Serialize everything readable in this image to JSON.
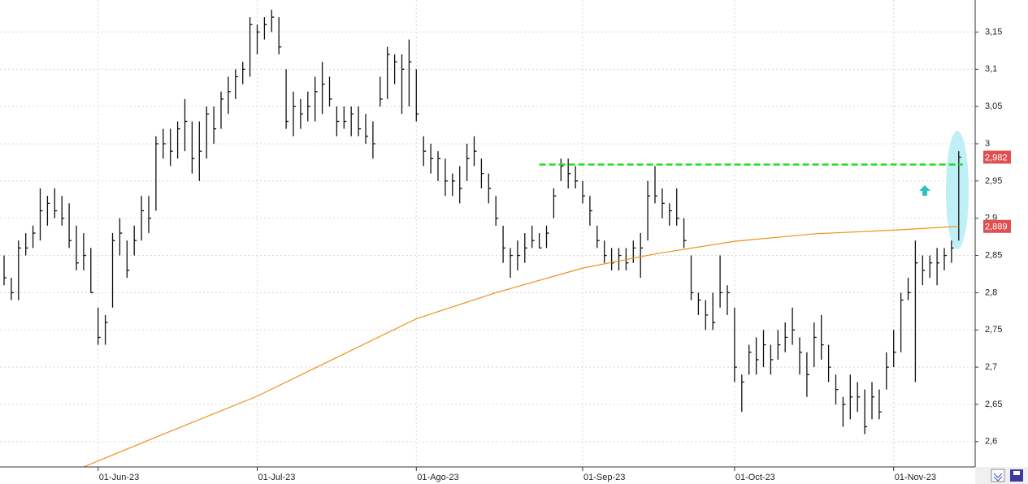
{
  "chart_data": {
    "type": "ohlc",
    "categories": [
      null,
      null,
      null,
      null,
      null,
      null,
      null,
      null,
      null,
      null,
      null,
      null,
      null,
      "01-Jun-23",
      null,
      null,
      null,
      null,
      null,
      null,
      null,
      null,
      null,
      null,
      null,
      null,
      null,
      null,
      null,
      null,
      null,
      null,
      null,
      null,
      null,
      "01-Jul-23",
      null,
      null,
      null,
      null,
      null,
      null,
      null,
      null,
      null,
      null,
      null,
      null,
      null,
      null,
      null,
      null,
      null,
      null,
      null,
      null,
      null,
      "01-Ago-23",
      null,
      null,
      null,
      null,
      null,
      null,
      null,
      null,
      null,
      null,
      null,
      null,
      null,
      null,
      null,
      null,
      null,
      null,
      null,
      null,
      null,
      null,
      "01-Sep-23",
      null,
      null,
      null,
      null,
      null,
      null,
      null,
      null,
      null,
      null,
      null,
      null,
      null,
      null,
      null,
      null,
      null,
      null,
      null,
      null,
      "01-Oct-23",
      null,
      null,
      null,
      null,
      null,
      null,
      null,
      null,
      null,
      null,
      null,
      null,
      null,
      null,
      null,
      null,
      null,
      null,
      null,
      null,
      null,
      "01-Nov-23",
      null,
      null,
      null,
      null,
      null,
      null,
      null,
      null,
      null
    ],
    "ohlc": {
      "color": "#111111",
      "high": [
        2.85,
        2.82,
        2.87,
        2.88,
        2.89,
        2.94,
        2.93,
        2.94,
        2.93,
        2.92,
        2.89,
        2.88,
        2.86,
        2.78,
        2.77,
        2.88,
        2.9,
        2.87,
        2.89,
        2.93,
        2.93,
        3.01,
        3.02,
        3.02,
        3.03,
        3.06,
        3.03,
        3.03,
        3.05,
        3.05,
        3.07,
        3.09,
        3.1,
        3.11,
        3.17,
        3.16,
        3.17,
        3.18,
        3.17,
        3.1,
        3.07,
        3.06,
        3.07,
        3.09,
        3.11,
        3.09,
        3.05,
        3.05,
        3.05,
        3.05,
        3.04,
        3.03,
        3.09,
        3.13,
        3.12,
        3.12,
        3.14,
        3.1,
        3.01,
        3.0,
        2.99,
        2.98,
        2.96,
        2.97,
        3.0,
        3.01,
        2.98,
        2.96,
        2.93,
        2.89,
        2.86,
        2.87,
        2.88,
        2.89,
        2.88,
        2.89,
        2.94,
        2.98,
        2.98,
        2.97,
        2.95,
        2.93,
        2.89,
        2.87,
        2.86,
        2.86,
        2.86,
        2.87,
        2.88,
        2.95,
        2.97,
        2.94,
        2.92,
        2.94,
        2.9,
        2.85,
        2.8,
        2.79,
        2.8,
        2.85,
        2.81,
        2.78,
        2.69,
        2.73,
        2.74,
        2.75,
        2.73,
        2.75,
        2.76,
        2.78,
        2.74,
        2.72,
        2.76,
        2.77,
        2.73,
        2.69,
        2.66,
        2.69,
        2.68,
        2.67,
        2.68,
        2.67,
        2.72,
        2.75,
        2.8,
        2.82,
        2.87,
        2.85,
        2.85,
        2.86,
        2.86,
        2.87,
        2.99
      ],
      "low": [
        2.81,
        2.79,
        2.79,
        2.85,
        2.86,
        2.87,
        2.89,
        2.9,
        2.89,
        2.86,
        2.83,
        2.83,
        2.8,
        2.73,
        2.73,
        2.78,
        2.85,
        2.82,
        2.85,
        2.87,
        2.88,
        2.91,
        2.98,
        2.97,
        2.98,
        2.99,
        2.96,
        2.95,
        2.98,
        3.0,
        3.02,
        3.04,
        3.06,
        3.08,
        3.09,
        3.12,
        3.14,
        3.15,
        3.12,
        3.02,
        3.01,
        3.02,
        3.03,
        3.03,
        3.04,
        3.05,
        3.01,
        3.02,
        3.01,
        3.01,
        3.0,
        2.98,
        3.05,
        3.06,
        3.08,
        3.04,
        3.05,
        3.03,
        2.97,
        2.96,
        2.95,
        2.93,
        2.93,
        2.92,
        2.95,
        2.97,
        2.94,
        2.92,
        2.89,
        2.84,
        2.82,
        2.83,
        2.84,
        2.86,
        2.86,
        2.86,
        2.9,
        2.95,
        2.94,
        2.94,
        2.92,
        2.89,
        2.86,
        2.84,
        2.83,
        2.83,
        2.83,
        2.84,
        2.82,
        2.87,
        2.92,
        2.9,
        2.89,
        2.89,
        2.86,
        2.79,
        2.77,
        2.75,
        2.75,
        2.78,
        2.77,
        2.68,
        2.64,
        2.69,
        2.69,
        2.7,
        2.69,
        2.71,
        2.72,
        2.73,
        2.69,
        2.66,
        2.7,
        2.71,
        2.68,
        2.65,
        2.62,
        2.63,
        2.64,
        2.61,
        2.63,
        2.63,
        2.67,
        2.7,
        2.72,
        2.79,
        2.68,
        2.81,
        2.82,
        2.81,
        2.83,
        2.84,
        2.87
      ],
      "close": [
        2.82,
        2.8,
        2.86,
        2.86,
        2.88,
        2.91,
        2.92,
        2.91,
        2.9,
        2.87,
        2.84,
        2.85,
        2.8,
        2.74,
        2.76,
        2.87,
        2.88,
        2.83,
        2.87,
        2.91,
        2.9,
        3.0,
        3.0,
        2.99,
        3.02,
        3.03,
        2.98,
        2.99,
        3.04,
        3.02,
        3.06,
        3.07,
        3.09,
        3.1,
        3.16,
        3.15,
        3.16,
        3.17,
        3.13,
        3.03,
        3.05,
        3.04,
        3.05,
        3.07,
        3.08,
        3.06,
        3.03,
        3.03,
        3.04,
        3.02,
        3.01,
        3.0,
        3.06,
        3.12,
        3.11,
        3.1,
        3.11,
        3.04,
        2.99,
        2.98,
        2.98,
        2.95,
        2.95,
        2.94,
        2.98,
        2.99,
        2.96,
        2.94,
        2.9,
        2.86,
        2.85,
        2.85,
        2.86,
        2.87,
        2.86,
        2.88,
        2.93,
        2.97,
        2.96,
        2.95,
        2.93,
        2.91,
        2.87,
        2.85,
        2.84,
        2.85,
        2.84,
        2.86,
        2.86,
        2.93,
        2.93,
        2.92,
        2.91,
        2.9,
        2.87,
        2.8,
        2.79,
        2.77,
        2.76,
        2.8,
        2.8,
        2.7,
        2.68,
        2.72,
        2.71,
        2.73,
        2.71,
        2.73,
        2.74,
        2.75,
        2.72,
        2.69,
        2.74,
        2.73,
        2.7,
        2.67,
        2.65,
        2.66,
        2.66,
        2.62,
        2.66,
        2.64,
        2.7,
        2.72,
        2.79,
        2.8,
        2.84,
        2.83,
        2.84,
        2.84,
        2.85,
        2.86,
        2.982
      ]
    },
    "lines": [
      {
        "color": "#f0901a",
        "x": [
          11,
          22,
          35,
          46,
          57,
          68,
          80,
          90,
          101,
          112,
          123,
          132
        ],
        "values": [
          2.566,
          2.61,
          2.661,
          2.713,
          2.765,
          2.8,
          2.833,
          2.852,
          2.869,
          2.879,
          2.884,
          2.889
        ]
      }
    ],
    "levels": [
      {
        "value": 2.972,
        "from": 74,
        "to": 132,
        "color": "#22dd22"
      }
    ],
    "price_labels": [
      {
        "value": 2.982,
        "label": "2,982",
        "color": "#e05050"
      },
      {
        "value": 2.889,
        "label": "2,889",
        "color": "#e05050"
      }
    ],
    "ylim": [
      2.566,
      3.193
    ],
    "yticks": [
      {
        "value": 2.6,
        "label": "2,6"
      },
      {
        "value": 2.65,
        "label": "2,65"
      },
      {
        "value": 2.7,
        "label": "2,7"
      },
      {
        "value": 2.75,
        "label": "2,75"
      },
      {
        "value": 2.8,
        "label": "2,8"
      },
      {
        "value": 2.85,
        "label": "2,85"
      },
      {
        "value": 2.9,
        "label": "2,9"
      },
      {
        "value": 2.95,
        "label": "2,95"
      },
      3,
      {
        "value": 3.05,
        "label": "3,05"
      },
      {
        "value": 3.1,
        "label": "3,1"
      },
      {
        "value": 3.15,
        "label": "3,15"
      }
    ],
    "grid": true
  }
}
